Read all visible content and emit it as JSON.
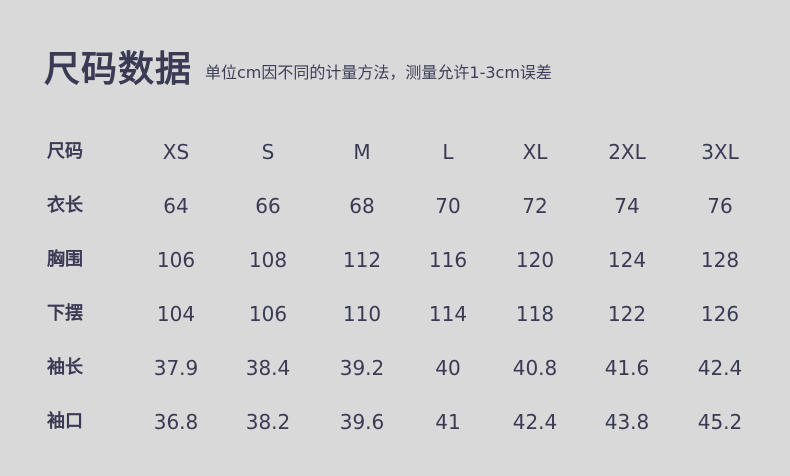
{
  "title": "尺码数据",
  "subtitle": "单位cm因不同的计量方法，测量允许1-3cm误差",
  "table": {
    "header": {
      "label": "尺码",
      "sizes": [
        "XS",
        "S",
        "M",
        "L",
        "XL",
        "2XL",
        "3XL"
      ]
    },
    "rows": [
      {
        "label": "衣长",
        "values": [
          "64",
          "66",
          "68",
          "70",
          "72",
          "74",
          "76"
        ]
      },
      {
        "label": "胸围",
        "values": [
          "106",
          "108",
          "112",
          "116",
          "120",
          "124",
          "128"
        ]
      },
      {
        "label": "下摆",
        "values": [
          "104",
          "106",
          "110",
          "114",
          "118",
          "122",
          "126"
        ]
      },
      {
        "label": "袖长",
        "values": [
          "37.9",
          "38.4",
          "39.2",
          "40",
          "40.8",
          "41.6",
          "42.4"
        ]
      },
      {
        "label": "袖口",
        "values": [
          "36.8",
          "38.2",
          "39.6",
          "41",
          "42.4",
          "43.8",
          "45.2"
        ]
      }
    ]
  }
}
